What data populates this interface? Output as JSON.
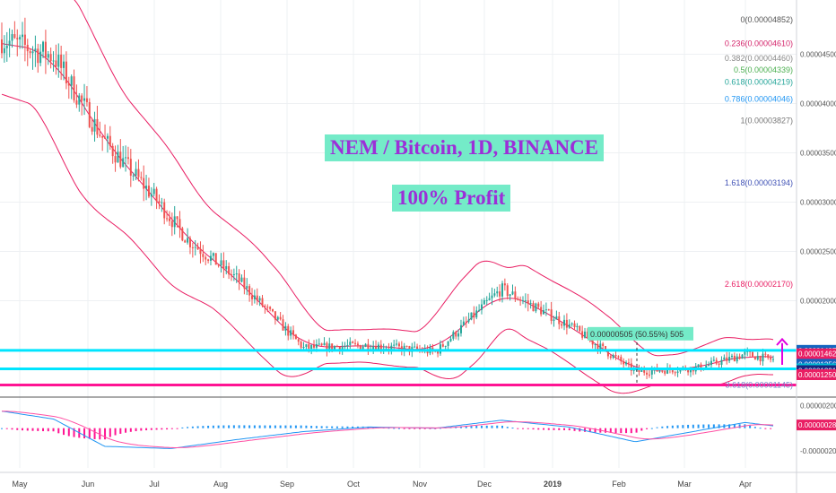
{
  "chart_data": [
    {
      "type": "candlestick",
      "overlay_title": "NEM / Bitcoin, 1D, BINANCE",
      "overlay_subtitle": "100% Profit",
      "indicators": [
        "Bollinger Bands"
      ],
      "x_ticks": [
        "May",
        "Jun",
        "Jul",
        "Aug",
        "Sep",
        "Oct",
        "Nov",
        "Dec",
        "2019",
        "Feb",
        "Mar",
        "Apr"
      ],
      "y_ticks": [
        "0.00004500",
        "0.00004000",
        "0.00003500",
        "0.00003000",
        "0.00002500",
        "0.00002000"
      ],
      "ylim": [
        1.05e-05,
        5.05e-05
      ],
      "price_path": [
        {
          "t": "May",
          "v": 4.65e-05
        },
        {
          "t": "May",
          "v": 4.48e-05
        },
        {
          "t": "Jun",
          "v": 3.62e-05
        },
        {
          "t": "Jul",
          "v": 3.05e-05
        },
        {
          "t": "Jul",
          "v": 2.62e-05
        },
        {
          "t": "Aug",
          "v": 2.22e-05
        },
        {
          "t": "Sep",
          "v": 1.52e-05
        },
        {
          "t": "Oct",
          "v": 1.55e-05
        },
        {
          "t": "Nov",
          "v": 1.48e-05
        },
        {
          "t": "Dec",
          "v": 2.12e-05
        },
        {
          "t": "2019",
          "v": 1.75e-05
        },
        {
          "t": "Feb",
          "v": 1.28e-05
        },
        {
          "t": "Mar",
          "v": 1.32e-05
        },
        {
          "t": "Apr",
          "v": 1.46e-05
        },
        {
          "t": "Apr",
          "v": 1.4e-05
        }
      ],
      "fibonacci_levels": [
        {
          "label": "0(0.00004852)",
          "value": 4.852e-05,
          "color": "#555555"
        },
        {
          "label": "0.236(0.00004610)",
          "value": 4.61e-05,
          "color": "#d4256b"
        },
        {
          "label": "0.382(0.00004460)",
          "value": 4.46e-05,
          "color": "#888888"
        },
        {
          "label": "0.5(0.00004339)",
          "value": 4.339e-05,
          "color": "#4caf50"
        },
        {
          "label": "0.618(0.00004219)",
          "value": 4.219e-05,
          "color": "#26a69a"
        },
        {
          "label": "0.786(0.00004046)",
          "value": 4.046e-05,
          "color": "#2196f3"
        },
        {
          "label": "1(0.00003827)",
          "value": 3.827e-05,
          "color": "#777777"
        },
        {
          "label": "1.618(0.00003194)",
          "value": 3.194e-05,
          "color": "#3f51b5"
        },
        {
          "label": "2.618(0.00002170)",
          "value": 2.17e-05,
          "color": "#e91e63"
        },
        {
          "label": "3.618(0.00001145)",
          "value": 1.145e-05,
          "color": "#7986cb"
        }
      ],
      "horizontal_lines": [
        {
          "value": 1.497e-05,
          "color": "#00e5ff"
        },
        {
          "value": 1.309e-05,
          "color": "#00e5ff"
        },
        {
          "value": 1.145e-05,
          "color": "#ff1493"
        }
      ],
      "measure_label": "0.00000505 (50.55%) 505",
      "price_tags": [
        {
          "label": "0.00001497",
          "value": 1.497e-05,
          "bg": "#1565c0"
        },
        {
          "label": "0.00001462",
          "value": 1.462e-05,
          "bg": "#e91e63"
        },
        {
          "label": "0.00001356",
          "value": 1.356e-05,
          "bg": "#1565c0"
        },
        {
          "label": "0.00001309",
          "value": 1.309e-05,
          "bg": "#00bcd4"
        },
        {
          "label": "0.00001291",
          "value": 1.291e-05,
          "bg": "#1a237e"
        },
        {
          "label": "0.00001250",
          "value": 1.25e-05,
          "bg": "#e91e63"
        }
      ],
      "colors": {
        "up": "#26a69a",
        "down": "#ef5350",
        "band": "#e91e63",
        "arrow": "#e000e0"
      }
    },
    {
      "type": "macd",
      "y_ticks": [
        "0.00000200",
        "-0.00000200"
      ],
      "ylim": [
        -3.5e-06,
        2.5e-06
      ],
      "value_tag": "0.00000028",
      "macd_path": [
        {
          "t": "May",
          "v": 1.5e-06
        },
        {
          "t": "May",
          "v": 8e-07
        },
        {
          "t": "Jun",
          "v": -1.6e-06
        },
        {
          "t": "Jul",
          "v": -1.8e-06
        },
        {
          "t": "Aug",
          "v": -1e-06
        },
        {
          "t": "Sep",
          "v": -3e-07
        },
        {
          "t": "Oct",
          "v": 1e-07
        },
        {
          "t": "Nov",
          "v": 0.0
        },
        {
          "t": "Dec",
          "v": 7e-07
        },
        {
          "t": "2019",
          "v": 1e-07
        },
        {
          "t": "Feb",
          "v": -1.2e-06
        },
        {
          "t": "Mar",
          "v": -2e-07
        },
        {
          "t": "Apr",
          "v": 5e-07
        },
        {
          "t": "Apr",
          "v": 2e-07
        }
      ],
      "colors": {
        "macd": "#2196f3",
        "signal": "#ff4fa3",
        "hist_up": "#2196f3",
        "hist_down": "#ff1493"
      }
    }
  ]
}
